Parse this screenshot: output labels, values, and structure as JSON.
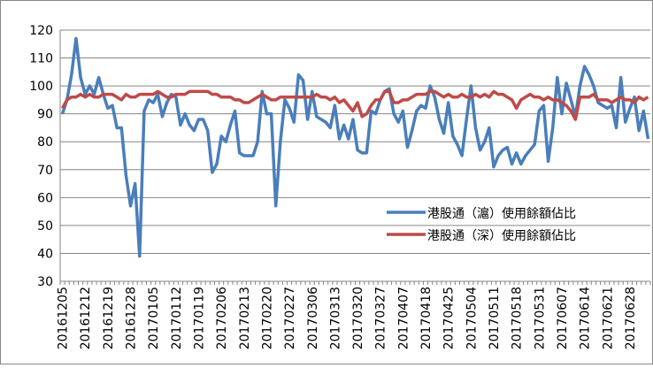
{
  "chart_data": {
    "type": "line",
    "categories": [
      "20161205",
      null,
      null,
      null,
      null,
      "20161212",
      null,
      null,
      null,
      null,
      "20161219",
      null,
      null,
      null,
      null,
      "20161228",
      null,
      null,
      null,
      null,
      "20170105",
      null,
      null,
      null,
      null,
      "20170112",
      null,
      null,
      null,
      null,
      "20170119",
      null,
      null,
      null,
      null,
      "20170206",
      null,
      null,
      null,
      null,
      "20170213",
      null,
      null,
      null,
      null,
      "20170220",
      null,
      null,
      null,
      null,
      "20170227",
      null,
      null,
      null,
      null,
      "20170306",
      null,
      null,
      null,
      null,
      "20170313",
      null,
      null,
      null,
      null,
      "20170320",
      null,
      null,
      null,
      null,
      "20170327",
      null,
      null,
      null,
      null,
      "20170407",
      null,
      null,
      null,
      null,
      "20170418",
      null,
      null,
      null,
      null,
      "20170425",
      null,
      null,
      null,
      null,
      "20170504",
      null,
      null,
      null,
      null,
      "20170511",
      null,
      null,
      null,
      null,
      "20170518",
      null,
      null,
      null,
      null,
      "20170531",
      null,
      null,
      null,
      null,
      "20170607",
      null,
      null,
      null,
      null,
      "20170614",
      null,
      null,
      null,
      null,
      "20170621",
      null,
      null,
      null,
      null,
      "20170628",
      null,
      null,
      null,
      null
    ],
    "series": [
      {
        "name": "港股通（滬）使用餘額佔比",
        "color": "#4a7ebb",
        "values": [
          90,
          95,
          104,
          117,
          103,
          97,
          100,
          97,
          103,
          97,
          92,
          93,
          85,
          85,
          68,
          57,
          65,
          39,
          91,
          95,
          94,
          97,
          89,
          94,
          97,
          96,
          86,
          90,
          86,
          84,
          88,
          88,
          84,
          69,
          72,
          82,
          80,
          86,
          91,
          76,
          75,
          75,
          75,
          80,
          98,
          90,
          90,
          57,
          80,
          95,
          92,
          87,
          104,
          102,
          88,
          98,
          89,
          88,
          87,
          85,
          93,
          81,
          86,
          81,
          88,
          77,
          76,
          76,
          91,
          90,
          95,
          98,
          99,
          90,
          87,
          91,
          78,
          84,
          91,
          93,
          92,
          100,
          96,
          88,
          83,
          94,
          82,
          79,
          75,
          88,
          100,
          85,
          77,
          80,
          85,
          71,
          75,
          77,
          78,
          72,
          76,
          72,
          75,
          77,
          79,
          91,
          93,
          73,
          85,
          103,
          90,
          101,
          95,
          89,
          100,
          107,
          104,
          100,
          94,
          93,
          92,
          93,
          85,
          103,
          87,
          92,
          96,
          84,
          91,
          81
        ]
      },
      {
        "name": "港股通（深）使用餘額佔比",
        "color": "#be4b48",
        "values": [
          92,
          95,
          96,
          96,
          97,
          96,
          97,
          96,
          96,
          97,
          97,
          97,
          96,
          95,
          97,
          96,
          96,
          97,
          97,
          97,
          97,
          98,
          97,
          96,
          96,
          97,
          97,
          97,
          98,
          98,
          98,
          98,
          98,
          97,
          97,
          96,
          96,
          96,
          95,
          95,
          94,
          94,
          95,
          96,
          97,
          96,
          95,
          95,
          96,
          96,
          96,
          96,
          96,
          96,
          96,
          96,
          97,
          96,
          96,
          95,
          96,
          94,
          95,
          93,
          91,
          94,
          89,
          90,
          93,
          95,
          95,
          98,
          98,
          94,
          94,
          95,
          95,
          96,
          97,
          97,
          97,
          98,
          98,
          97,
          96,
          97,
          96,
          96,
          97,
          96,
          96,
          97,
          96,
          97,
          96,
          98,
          97,
          97,
          96,
          95,
          92,
          95,
          96,
          97,
          96,
          96,
          95,
          96,
          95,
          95,
          94,
          93,
          91,
          88,
          96,
          96,
          96,
          97,
          95,
          95,
          95,
          94,
          95,
          96,
          95,
          95,
          94,
          96,
          95,
          96
        ]
      }
    ],
    "ylim": [
      30,
      120
    ],
    "yticks": [
      30,
      40,
      50,
      60,
      70,
      80,
      90,
      100,
      110,
      120
    ],
    "grid": true,
    "legend": "right"
  }
}
